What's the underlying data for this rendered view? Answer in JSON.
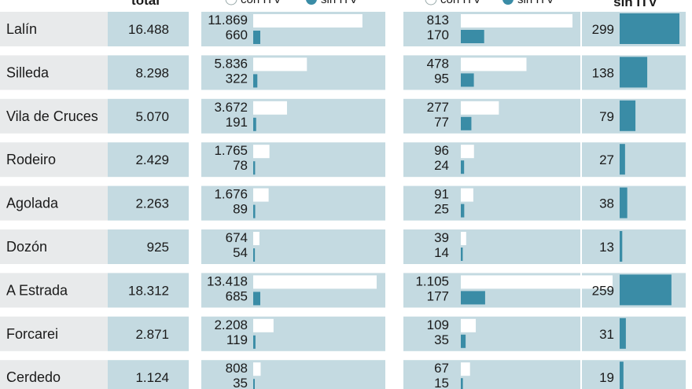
{
  "header": {
    "col_total": "total",
    "legend_con": "con ITV",
    "legend_sin": "sin ITV",
    "col_sin": "sin ITV"
  },
  "colors": {
    "panel": "#c4dae1",
    "name_panel": "#e8eaeb",
    "con_bar": "#ffffff",
    "sin_bar": "#3a8ca6",
    "header_bg": "#ffffff"
  },
  "chart_data": {
    "type": "bar",
    "categories": [
      "Lalín",
      "Silleda",
      "Vila de Cruces",
      "Rodeiro",
      "Agolada",
      "Dozón",
      "A Estrada",
      "Forcarei",
      "Cerdedo"
    ],
    "total": [
      16488,
      8298,
      5070,
      2429,
      2263,
      925,
      18312,
      2871,
      1124
    ],
    "total_labels": [
      "16.488",
      "8.298",
      "5.070",
      "2.429",
      "2.263",
      "925",
      "18.312",
      "2.871",
      "1.124"
    ],
    "group1": {
      "con": [
        11869,
        5836,
        3672,
        1765,
        1676,
        674,
        13418,
        2208,
        808
      ],
      "con_labels": [
        "11.869",
        "5.836",
        "3.672",
        "1.765",
        "1.676",
        "674",
        "13.418",
        "2.208",
        "808"
      ],
      "sin": [
        660,
        322,
        191,
        78,
        89,
        54,
        685,
        119,
        35
      ],
      "sin_labels": [
        "660",
        "322",
        "191",
        "78",
        "89",
        "54",
        "685",
        "119",
        "35"
      ]
    },
    "group2": {
      "con": [
        813,
        478,
        277,
        96,
        91,
        39,
        1105,
        109,
        67
      ],
      "con_labels": [
        "813",
        "478",
        "277",
        "96",
        "91",
        "39",
        "1.105",
        "109",
        "67"
      ],
      "sin": [
        170,
        95,
        77,
        24,
        25,
        14,
        177,
        35,
        15
      ],
      "sin_labels": [
        "170",
        "95",
        "77",
        "24",
        "25",
        "14",
        "177",
        "35",
        "15"
      ]
    },
    "group3": {
      "sin": [
        299,
        138,
        79,
        27,
        38,
        13,
        259,
        31,
        19
      ],
      "sin_labels": [
        "299",
        "138",
        "79",
        "27",
        "38",
        "13",
        "259",
        "31",
        "19"
      ]
    }
  }
}
